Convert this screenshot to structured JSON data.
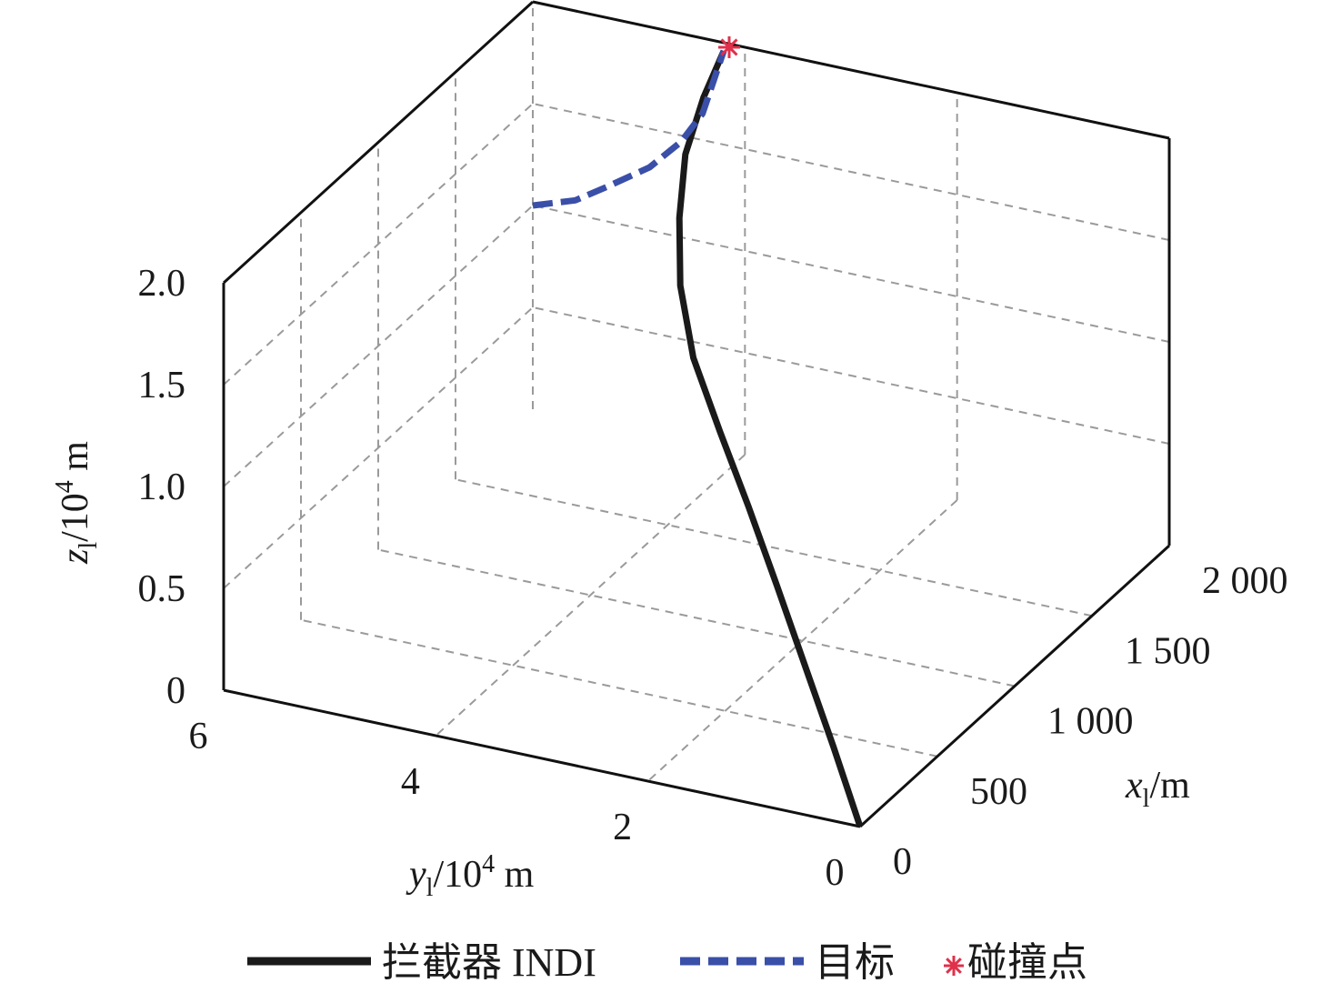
{
  "chart_data": {
    "type": "line3d",
    "axes": {
      "x": {
        "label_main": "x",
        "label_sub": "l",
        "label_rest": "/m",
        "range": [
          0,
          2000
        ],
        "ticks": [
          "0",
          "500",
          "1 000",
          "1 500",
          "2 000"
        ],
        "tick_values": [
          0,
          500,
          1000,
          1500,
          2000
        ]
      },
      "y": {
        "label_main": "y",
        "label_sub": "l",
        "label_mid": "/10",
        "label_sup": "4",
        "label_rest": " m",
        "range": [
          0,
          6
        ],
        "ticks": [
          "0",
          "2",
          "4",
          "6"
        ],
        "tick_values": [
          0,
          2,
          4,
          6
        ]
      },
      "z": {
        "label_main": "z",
        "label_sub": "l",
        "label_mid": "/10",
        "label_sup": "4",
        "label_rest": " m",
        "range": [
          0,
          2.0
        ],
        "ticks": [
          "0",
          "0.5",
          "1.0",
          "1.5",
          "2.0"
        ],
        "tick_values": [
          0,
          0.5,
          1.0,
          1.5,
          2.0
        ]
      }
    },
    "grid": true,
    "series": [
      {
        "name": "拦截器 INDI",
        "style": "solid",
        "color": "#1a1a1a",
        "points": [
          {
            "x": 0,
            "y": 0,
            "z": 0
          },
          {
            "x": 170,
            "y": 0.5,
            "z": 0.22
          },
          {
            "x": 330,
            "y": 1.0,
            "z": 0.45
          },
          {
            "x": 490,
            "y": 1.5,
            "z": 0.68
          },
          {
            "x": 650,
            "y": 2.0,
            "z": 0.9
          },
          {
            "x": 810,
            "y": 2.5,
            "z": 1.1
          },
          {
            "x": 980,
            "y": 3.0,
            "z": 1.29
          },
          {
            "x": 1170,
            "y": 3.4,
            "z": 1.47
          },
          {
            "x": 1370,
            "y": 3.7,
            "z": 1.63
          },
          {
            "x": 1580,
            "y": 3.95,
            "z": 1.77
          },
          {
            "x": 1800,
            "y": 4.1,
            "z": 1.88
          },
          {
            "x": 2000,
            "y": 4.2,
            "z": 1.96
          }
        ]
      },
      {
        "name": "目标",
        "style": "dashed",
        "color": "#3a4fa8",
        "points": [
          {
            "x": 2000,
            "y": 6.0,
            "z": 1.0
          },
          {
            "x": 2000,
            "y": 5.6,
            "z": 1.07
          },
          {
            "x": 2000,
            "y": 5.3,
            "z": 1.17
          },
          {
            "x": 2000,
            "y": 4.9,
            "z": 1.31
          },
          {
            "x": 2000,
            "y": 4.6,
            "z": 1.47
          },
          {
            "x": 2000,
            "y": 4.4,
            "z": 1.63
          },
          {
            "x": 2000,
            "y": 4.2,
            "z": 1.96
          }
        ]
      }
    ],
    "markers": [
      {
        "name": "碰撞点",
        "symbol": "asterisk",
        "color": "#e0304a",
        "point": {
          "x": 2000,
          "y": 4.2,
          "z": 1.96
        }
      }
    ],
    "legend": {
      "position": "bottom",
      "items": [
        "拦截器 INDI",
        "目标",
        "碰撞点"
      ]
    }
  }
}
